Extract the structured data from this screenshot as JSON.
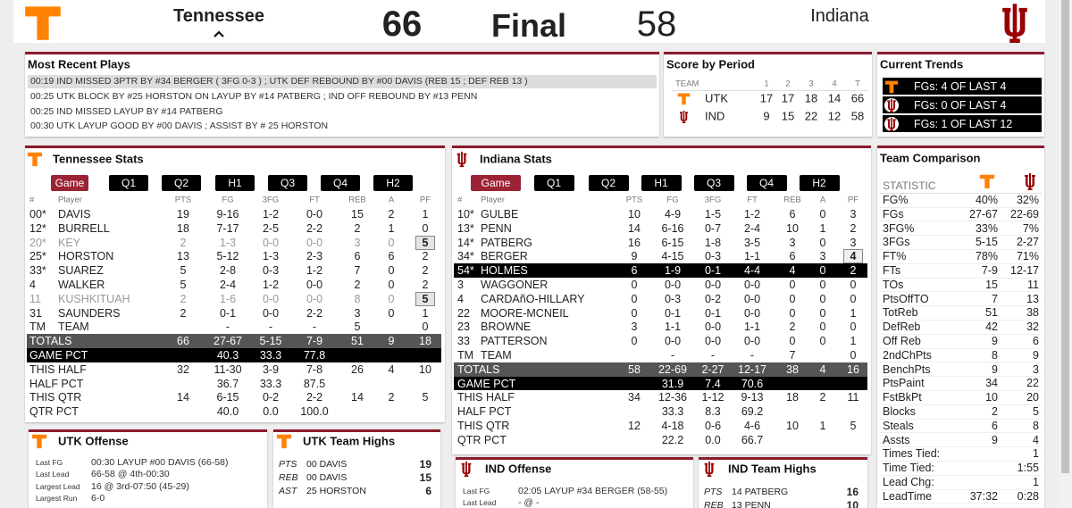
{
  "header": {
    "home_team": "Tennessee",
    "home_score": 66,
    "status": "Final",
    "away_score": 58,
    "away_team": "Indiana"
  },
  "recent_plays": {
    "title": "Most Recent Plays",
    "plays": [
      "00:19 IND MISSED 3PTR BY #34 BERGER ( 3FG 0-3 ) ; UTK DEF REBOUND BY #00 DAVIS (REB 15 ; DEF REB 13 )",
      "00:25 UTK BLOCK BY #25 HORSTON ON LAYUP BY #14 PATBERG ; IND OFF REBOUND BY #13 PENN",
      "00:25 IND MISSED LAYUP BY #14 PATBERG",
      "00:30 UTK LAYUP GOOD BY #00 DAVIS ; ASSIST BY # 25 HORSTON"
    ]
  },
  "score_by_period": {
    "title": "Score by Period",
    "columns": [
      "TEAM",
      "1",
      "2",
      "3",
      "4",
      "T"
    ],
    "rows": [
      [
        "UTK",
        17,
        17,
        18,
        14,
        66
      ],
      [
        "IND",
        9,
        15,
        22,
        12,
        58
      ]
    ]
  },
  "current_trends": {
    "title": "Current Trends",
    "items": [
      "FGs: 4 OF LAST 4",
      "FGs: 0 OF LAST 4",
      "FGs: 1 OF LAST 12"
    ]
  },
  "tennessee_stats": {
    "title": "Tennessee Stats",
    "tabs": [
      "Game",
      "Q1",
      "Q2",
      "H1",
      "Q3",
      "Q4",
      "H2"
    ],
    "columns": [
      "#",
      "Player",
      "PTS",
      "FG",
      "3FG",
      "FT",
      "REB",
      "A",
      "PF"
    ],
    "rows": [
      [
        "00*",
        "DAVIS",
        "19",
        "9-16",
        "1-2",
        "0-0",
        "15",
        "2",
        "1"
      ],
      [
        "12*",
        "BURRELL",
        "18",
        "7-17",
        "2-5",
        "2-2",
        "2",
        "1",
        "0"
      ],
      [
        "20*",
        "KEY",
        "2",
        "1-3",
        "0-0",
        "0-0",
        "3",
        "0",
        "5"
      ],
      [
        "25*",
        "HORSTON",
        "13",
        "5-12",
        "1-3",
        "2-3",
        "6",
        "6",
        "2"
      ],
      [
        "33*",
        "SUAREZ",
        "5",
        "2-8",
        "0-3",
        "1-2",
        "7",
        "0",
        "2"
      ],
      [
        "4",
        "WALKER",
        "5",
        "2-4",
        "1-2",
        "0-0",
        "2",
        "0",
        "2"
      ],
      [
        "11",
        "KUSHKITUAH",
        "2",
        "1-6",
        "0-0",
        "0-0",
        "8",
        "0",
        "5"
      ],
      [
        "31",
        "SAUNDERS",
        "2",
        "0-1",
        "0-0",
        "2-2",
        "3",
        "0",
        "1"
      ],
      [
        "TM",
        "TEAM",
        null,
        "-",
        "-",
        "-",
        "5",
        null,
        "0"
      ],
      [
        "TOTALS",
        null,
        "66",
        "27-67",
        "5-15",
        "7-9",
        "51",
        "9",
        "18"
      ],
      [
        "GAME PCT",
        null,
        null,
        "40.3",
        "33.3",
        "77.8",
        null,
        null,
        null
      ],
      [
        "THIS HALF",
        null,
        "32",
        "11-30",
        "3-9",
        "7-8",
        "26",
        "4",
        "10"
      ],
      [
        "HALF PCT",
        null,
        null,
        "36.7",
        "33.3",
        "87.5",
        null,
        null,
        null
      ],
      [
        "THIS QTR",
        null,
        "14",
        "6-15",
        "0-2",
        "2-2",
        "14",
        "2",
        "5"
      ],
      [
        "QTR PCT",
        null,
        null,
        "40.0",
        "0.0",
        "100.0",
        null,
        null,
        null
      ]
    ]
  },
  "indiana_stats": {
    "title": "Indiana Stats",
    "tabs": [
      "Game",
      "Q1",
      "Q2",
      "H1",
      "Q3",
      "Q4",
      "H2"
    ],
    "columns": [
      "#",
      "Player",
      "PTS",
      "FG",
      "3FG",
      "FT",
      "REB",
      "A",
      "PF"
    ],
    "rows": [
      [
        "10*",
        "GULBE",
        "10",
        "4-9",
        "1-5",
        "1-2",
        "6",
        "0",
        "3"
      ],
      [
        "13*",
        "PENN",
        "14",
        "6-16",
        "0-7",
        "2-4",
        "10",
        "1",
        "2"
      ],
      [
        "14*",
        "PATBERG",
        "16",
        "6-15",
        "1-8",
        "3-5",
        "3",
        "0",
        "3"
      ],
      [
        "34*",
        "BERGER",
        "9",
        "4-15",
        "0-3",
        "1-1",
        "6",
        "3",
        "4"
      ],
      [
        "54*",
        "HOLMES",
        "6",
        "1-9",
        "0-1",
        "4-4",
        "4",
        "0",
        "2"
      ],
      [
        "3",
        "WAGGONER",
        "0",
        "0-0",
        "0-0",
        "0-0",
        "0",
        "0",
        "0"
      ],
      [
        "4",
        "CARDAñO-HILLARY",
        "0",
        "0-3",
        "0-2",
        "0-0",
        "0",
        "0",
        "0"
      ],
      [
        "22",
        "MOORE-MCNEIL",
        "0",
        "0-1",
        "0-1",
        "0-0",
        "0",
        "0",
        "1"
      ],
      [
        "23",
        "BROWNE",
        "3",
        "1-1",
        "0-0",
        "1-1",
        "2",
        "0",
        "0"
      ],
      [
        "33",
        "PATTERSON",
        "0",
        "0-0",
        "0-0",
        "0-0",
        "0",
        "0",
        "1"
      ],
      [
        "TM",
        "TEAM",
        null,
        "-",
        "-",
        "-",
        "7",
        null,
        "0"
      ],
      [
        "TOTALS",
        null,
        "58",
        "22-69",
        "2-27",
        "12-17",
        "38",
        "4",
        "16"
      ],
      [
        "GAME PCT",
        null,
        null,
        "31.9",
        "7.4",
        "70.6",
        null,
        null,
        null
      ],
      [
        "THIS HALF",
        null,
        "34",
        "12-36",
        "1-12",
        "9-13",
        "18",
        "2",
        "11"
      ],
      [
        "HALF PCT",
        null,
        null,
        "33.3",
        "8.3",
        "69.2",
        null,
        null,
        null
      ],
      [
        "THIS QTR",
        null,
        "12",
        "4-18",
        "0-6",
        "4-6",
        "10",
        "1",
        "5"
      ],
      [
        "QTR PCT",
        null,
        null,
        "22.2",
        "0.0",
        "66.7",
        null,
        null,
        null
      ]
    ]
  },
  "utk_offense": {
    "title": "UTK Offense",
    "rows": [
      [
        "Last FG",
        "00:30 LAYUP #00 DAVIS (66-58)"
      ],
      [
        "Last Lead",
        "66-58 @ 4th-00:30"
      ],
      [
        "Largest Lead",
        "16 @ 3rd-07:50 (45-29)"
      ],
      [
        "Largest Run",
        "6-0"
      ]
    ]
  },
  "utk_team_highs": {
    "title": "UTK Team Highs",
    "rows": [
      [
        "PTS",
        "00 DAVIS",
        "19"
      ],
      [
        "REB",
        "00 DAVIS",
        "15"
      ],
      [
        "AST",
        "25 HORSTON",
        "6"
      ]
    ]
  },
  "ind_offense": {
    "title": "IND Offense",
    "rows": [
      [
        "Last FG",
        "02:05 LAYUP #34 BERGER (58-55)"
      ],
      [
        "Last Lead",
        "- @ -"
      ]
    ]
  },
  "ind_team_highs": {
    "title": "IND Team Highs",
    "rows": [
      [
        "PTS",
        "14 PATBERG",
        "16"
      ],
      [
        "REB",
        "13 PENN",
        "10"
      ]
    ]
  },
  "team_comparison": {
    "title": "Team Comparison",
    "header": "STATISTIC",
    "rows": [
      [
        "FG%",
        "40%",
        "32%"
      ],
      [
        "FGs",
        "27-67",
        "22-69"
      ],
      [
        "3FG%",
        "33%",
        "7%"
      ],
      [
        "3FGs",
        "5-15",
        "2-27"
      ],
      [
        "FT%",
        "78%",
        "71%"
      ],
      [
        "FTs",
        "7-9",
        "12-17"
      ],
      [
        "TOs",
        "15",
        "11"
      ],
      [
        "PtsOffTO",
        "7",
        "13"
      ],
      [
        "TotReb",
        "51",
        "38"
      ],
      [
        "DefReb",
        "42",
        "32"
      ],
      [
        "Off Reb",
        "9",
        "6"
      ],
      [
        "2ndChPts",
        "8",
        "9"
      ],
      [
        "BenchPts",
        "9",
        "3"
      ],
      [
        "PtsPaint",
        "34",
        "22"
      ],
      [
        "FstBkPt",
        "10",
        "20"
      ],
      [
        "Blocks",
        "2",
        "5"
      ],
      [
        "Steals",
        "6",
        "8"
      ],
      [
        "Assts",
        "9",
        "4"
      ],
      [
        "Times Tied:",
        null,
        "1"
      ],
      [
        "Time Tied:",
        null,
        "1:55"
      ],
      [
        "Lead Chg:",
        null,
        "1"
      ],
      [
        "LeadTime",
        "37:32",
        "0:28"
      ]
    ]
  }
}
